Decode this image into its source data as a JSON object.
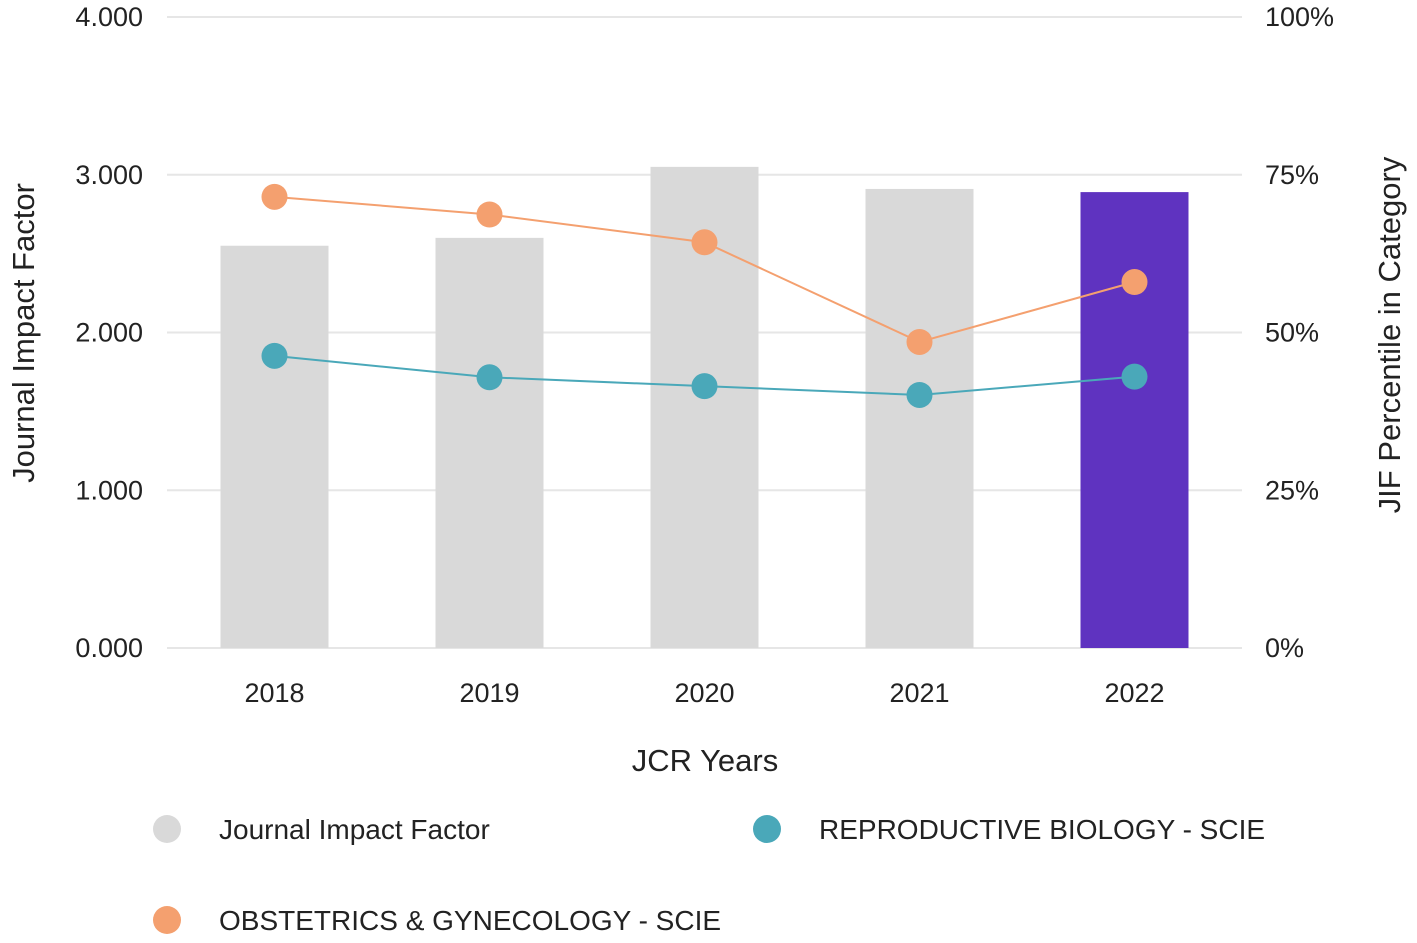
{
  "chart_data": {
    "type": "bar",
    "categories": [
      "2018",
      "2019",
      "2020",
      "2021",
      "2022"
    ],
    "bar_series": {
      "name": "Journal Impact Factor",
      "values": [
        2.55,
        2.6,
        3.05,
        2.91,
        2.89
      ],
      "color": "#d9d9d9",
      "highlight_color": "#5f33c0",
      "highlight_index": 4
    },
    "line_series": [
      {
        "name": "OBSTETRICS & GYNECOLOGY - SCIE",
        "values": [
          71.5,
          68.7,
          64.3,
          48.5,
          58.0
        ],
        "color": "#f4a06f"
      },
      {
        "name": "REPRODUCTIVE BIOLOGY - SCIE",
        "values": [
          46.3,
          42.9,
          41.5,
          40.1,
          43.0
        ],
        "color": "#4aa8b9"
      }
    ],
    "ylabel": "Journal Impact Factor",
    "y2label": "JIF Percentile in Category",
    "xlabel": "JCR Years",
    "ylim": [
      0,
      4
    ],
    "y2lim": [
      0,
      100
    ],
    "y_ticks": [
      "0.000",
      "1.000",
      "2.000",
      "3.000",
      "4.000"
    ],
    "y2_ticks": [
      "0%",
      "25%",
      "50%",
      "75%",
      "100%"
    ],
    "grid": true,
    "legend": {
      "placement": "bottom",
      "items": [
        {
          "label": "Journal Impact Factor",
          "color": "#d9d9d9"
        },
        {
          "label": "REPRODUCTIVE BIOLOGY - SCIE",
          "color": "#4aa8b9"
        },
        {
          "label": "OBSTETRICS & GYNECOLOGY - SCIE",
          "color": "#f4a06f"
        }
      ]
    }
  }
}
